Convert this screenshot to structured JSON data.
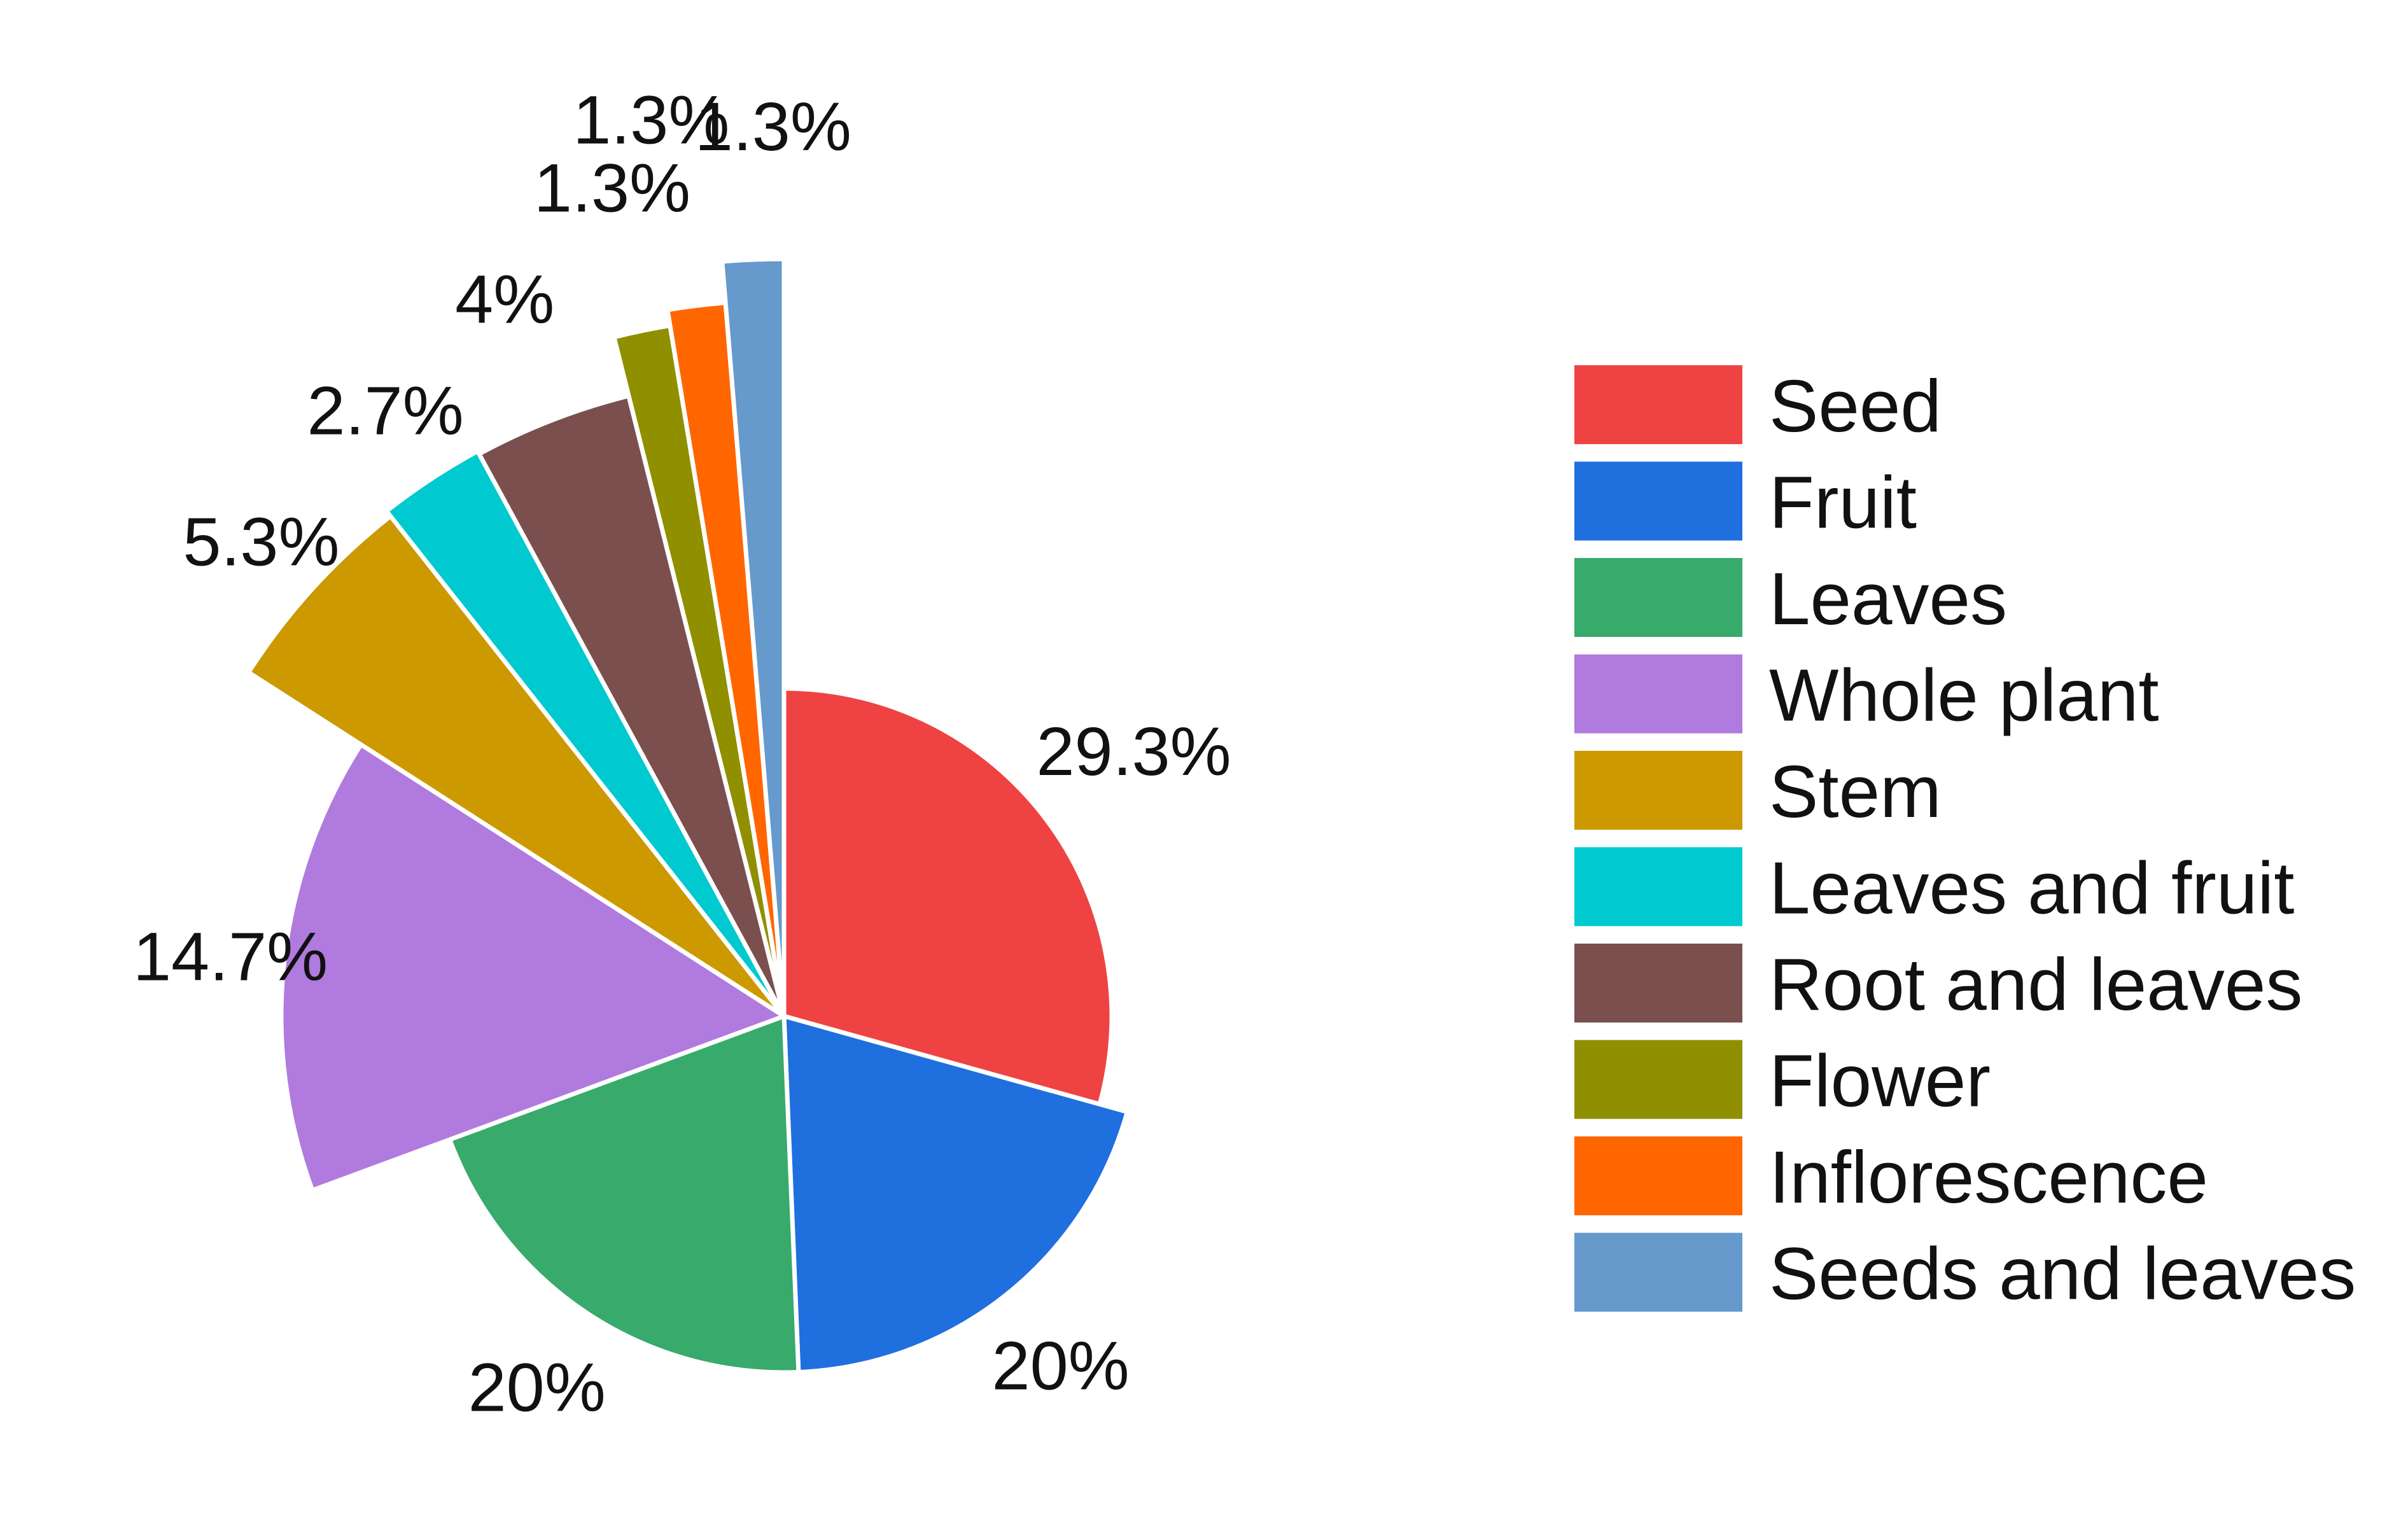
{
  "chart_data": {
    "type": "pie",
    "title": "",
    "legend_position": "right",
    "slices": [
      {
        "name": "Seed",
        "value": 29.3,
        "label": "29.3%",
        "color": "#ef4343"
      },
      {
        "name": "Fruit",
        "value": 20,
        "label": "20%",
        "color": "#1f6fdf"
      },
      {
        "name": "Leaves",
        "value": 20,
        "label": "20%",
        "color": "#38aa6c"
      },
      {
        "name": "Whole plant",
        "value": 14.7,
        "label": "14.7%",
        "color": "#b07ade"
      },
      {
        "name": "Stem",
        "value": 5.3,
        "label": "5.3%",
        "color": "#cc9900"
      },
      {
        "name": "Leaves and fruit",
        "value": 2.7,
        "label": "2.7%",
        "color": "#00c9cf"
      },
      {
        "name": "Root and leaves",
        "value": 4,
        "label": "4%",
        "color": "#7c4f4f"
      },
      {
        "name": "Flower",
        "value": 1.3,
        "label": "1.3%",
        "color": "#8f8f00"
      },
      {
        "name": "Inflorescence",
        "value": 1.3,
        "label": "1.3%",
        "color": "#ff6600"
      },
      {
        "name": "Seeds and leaves",
        "value": 1.3,
        "label": "1.3%",
        "color": "#6699cc"
      }
    ]
  }
}
